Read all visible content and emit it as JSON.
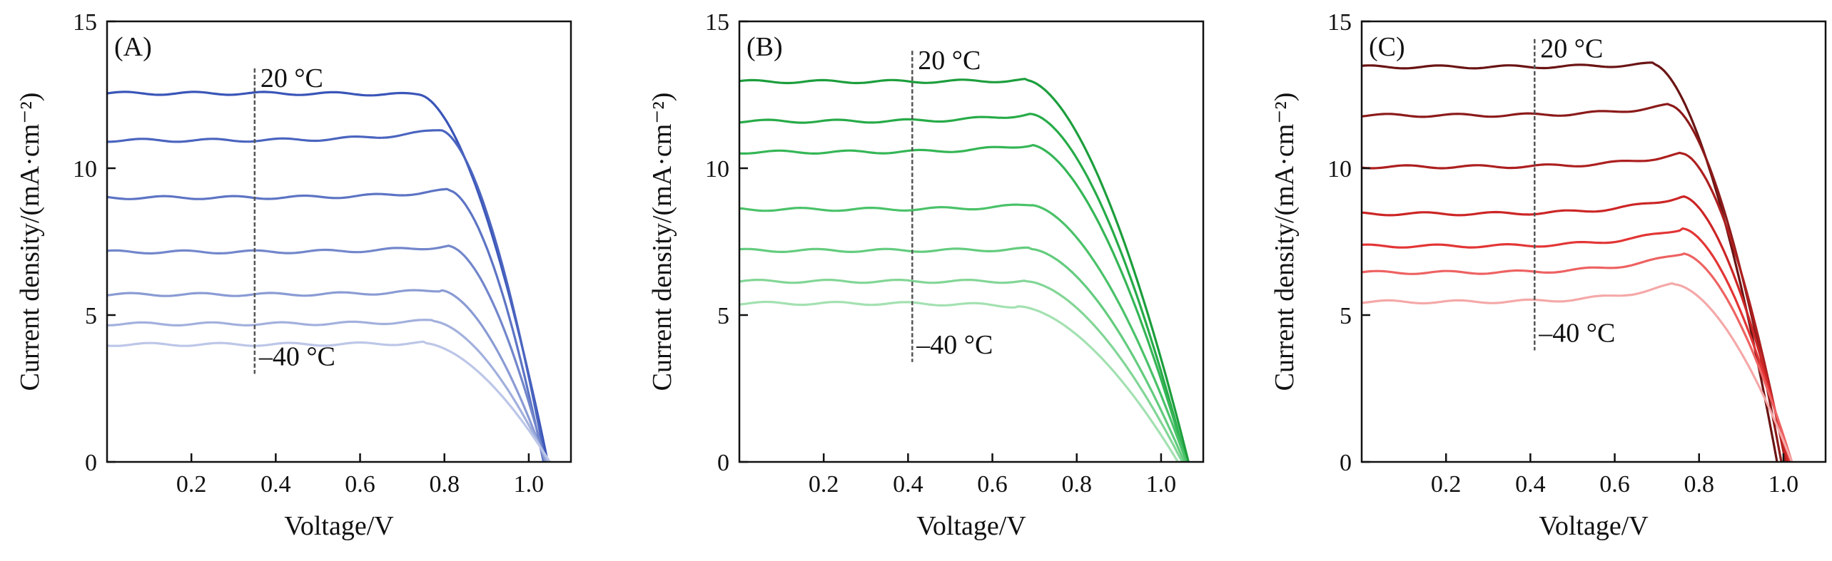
{
  "chart_data": [
    {
      "type": "line",
      "panel_label": "(A)",
      "xlabel": "Voltage/V",
      "ylabel": "Current density/(mA·cm⁻²)",
      "xlim": [
        0,
        1.1
      ],
      "ylim": [
        0,
        15
      ],
      "xticks": [
        0.2,
        0.4,
        0.6,
        0.8,
        1.0
      ],
      "xtick_labels": [
        "0.2",
        "0.4",
        "0.6",
        "0.8",
        "1.0"
      ],
      "yticks": [
        0,
        5,
        10,
        15
      ],
      "ytick_labels": [
        "0",
        "5",
        "10",
        "15"
      ],
      "grid": false,
      "annotations": {
        "top": "20 °C",
        "bottom": "–40 °C",
        "arrow_x": 0.35,
        "arrow_y": [
          13.4,
          3.0
        ]
      },
      "series": [
        {
          "color": "#3a55b8",
          "jsc": 12.55,
          "bump_v": 0.74,
          "bump_j": 12.5,
          "voc": 1.045
        },
        {
          "color": "#4a64bf",
          "jsc": 10.95,
          "bump_v": 0.79,
          "bump_j": 11.3,
          "voc": 1.04
        },
        {
          "color": "#5d74c4",
          "jsc": 9.0,
          "bump_v": 0.81,
          "bump_j": 9.25,
          "voc": 1.035
        },
        {
          "color": "#7286cb",
          "jsc": 7.15,
          "bump_v": 0.81,
          "bump_j": 7.35,
          "voc": 1.04
        },
        {
          "color": "#8a9bd4",
          "jsc": 5.7,
          "bump_v": 0.79,
          "bump_j": 5.85,
          "voc": 1.04
        },
        {
          "color": "#a2b0dd",
          "jsc": 4.7,
          "bump_v": 0.77,
          "bump_j": 4.8,
          "voc": 1.045
        },
        {
          "color": "#bcc6e8",
          "jsc": 4.0,
          "bump_v": 0.75,
          "bump_j": 4.05,
          "voc": 1.05
        }
      ]
    },
    {
      "type": "line",
      "panel_label": "(B)",
      "xlabel": "Voltage/V",
      "ylabel": "Current density/(mA·cm⁻²)",
      "xlim": [
        0,
        1.1
      ],
      "ylim": [
        0,
        15
      ],
      "xticks": [
        0.2,
        0.4,
        0.6,
        0.8,
        1.0
      ],
      "xtick_labels": [
        "0.2",
        "0.4",
        "0.6",
        "0.8",
        "1.0"
      ],
      "yticks": [
        0,
        5,
        10,
        15
      ],
      "ytick_labels": [
        "0",
        "5",
        "10",
        "15"
      ],
      "grid": false,
      "annotations": {
        "top": "20 °C",
        "bottom": "–40 °C",
        "arrow_x": 0.41,
        "arrow_y": [
          14.0,
          3.4
        ]
      },
      "series": [
        {
          "color": "#1c9e3c",
          "jsc": 12.95,
          "bump_v": 0.68,
          "bump_j": 13.0,
          "voc": 1.065
        },
        {
          "color": "#27ab48",
          "jsc": 11.6,
          "bump_v": 0.69,
          "bump_j": 11.85,
          "voc": 1.06
        },
        {
          "color": "#35b656",
          "jsc": 10.55,
          "bump_v": 0.69,
          "bump_j": 10.8,
          "voc": 1.06
        },
        {
          "color": "#4ac269",
          "jsc": 8.6,
          "bump_v": 0.69,
          "bump_j": 8.75,
          "voc": 1.06
        },
        {
          "color": "#63cc7e",
          "jsc": 7.2,
          "bump_v": 0.69,
          "bump_j": 7.25,
          "voc": 1.055
        },
        {
          "color": "#82d696",
          "jsc": 6.15,
          "bump_v": 0.68,
          "bump_j": 6.15,
          "voc": 1.05
        },
        {
          "color": "#a3e1b1",
          "jsc": 5.4,
          "bump_v": 0.66,
          "bump_j": 5.3,
          "voc": 1.04
        }
      ]
    },
    {
      "type": "line",
      "panel_label": "(C)",
      "xlabel": "Voltage/V",
      "ylabel": "Current density/(mA·cm⁻²)",
      "xlim": [
        0,
        1.1
      ],
      "ylim": [
        0,
        15
      ],
      "xticks": [
        0.2,
        0.4,
        0.6,
        0.8,
        1.0
      ],
      "xtick_labels": [
        "0.2",
        "0.4",
        "0.6",
        "0.8",
        "1.0"
      ],
      "yticks": [
        0,
        5,
        10,
        15
      ],
      "ytick_labels": [
        "0",
        "5",
        "10",
        "15"
      ],
      "grid": false,
      "annotations": {
        "top": "20 °C",
        "bottom": "–40 °C",
        "arrow_x": 0.41,
        "arrow_y": [
          14.4,
          3.8
        ]
      },
      "series": [
        {
          "color": "#6b1414",
          "jsc": 13.45,
          "bump_v": 0.69,
          "bump_j": 13.55,
          "voc": 0.985
        },
        {
          "color": "#8c1a1a",
          "jsc": 11.8,
          "bump_v": 0.73,
          "bump_j": 12.15,
          "voc": 0.995
        },
        {
          "color": "#ad1f1f",
          "jsc": 10.05,
          "bump_v": 0.76,
          "bump_j": 10.5,
          "voc": 1.005
        },
        {
          "color": "#cc2525",
          "jsc": 8.45,
          "bump_v": 0.76,
          "bump_j": 9.05,
          "voc": 1.01
        },
        {
          "color": "#e33535",
          "jsc": 7.35,
          "bump_v": 0.76,
          "bump_j": 7.95,
          "voc": 1.015
        },
        {
          "color": "#ee6262",
          "jsc": 6.45,
          "bump_v": 0.76,
          "bump_j": 7.1,
          "voc": 1.02
        },
        {
          "color": "#f5a8a8",
          "jsc": 5.45,
          "bump_v": 0.74,
          "bump_j": 6.05,
          "voc": 1.02
        }
      ]
    }
  ]
}
